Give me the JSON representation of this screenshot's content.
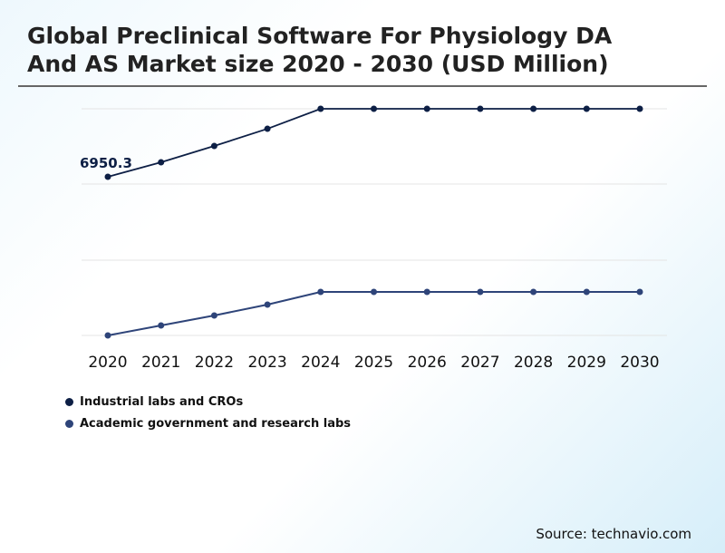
{
  "chart_data": {
    "type": "line",
    "title": "Global Preclinical Software For Physiology DA And AS Market size 2020 - 2030 (USD Million)",
    "x": [
      "2020",
      "2021",
      "2022",
      "2023",
      "2024",
      "2025",
      "2026",
      "2027",
      "2028",
      "2029",
      "2030"
    ],
    "series": [
      {
        "name": "Industrial labs and CROs",
        "color": "#0d1f45",
        "values": [
          6950.3,
          7584,
          8299,
          9053,
          9929,
          9929,
          9929,
          9929,
          9929,
          9929,
          9929
        ]
      },
      {
        "name": "Academic government and research labs",
        "color": "#2e4479",
        "values": [
          0,
          437,
          874,
          1350,
          1906,
          1906,
          1906,
          1906,
          1906,
          1906,
          1906
        ]
      }
    ],
    "data_labels": [
      {
        "series": 0,
        "x": "2020",
        "text": "6950.3"
      }
    ],
    "ylim": [
      0,
      9929
    ],
    "y_ticks_shown": false,
    "grid": true,
    "legend_position": "bottom-left"
  },
  "source": "Source: technavio.com"
}
